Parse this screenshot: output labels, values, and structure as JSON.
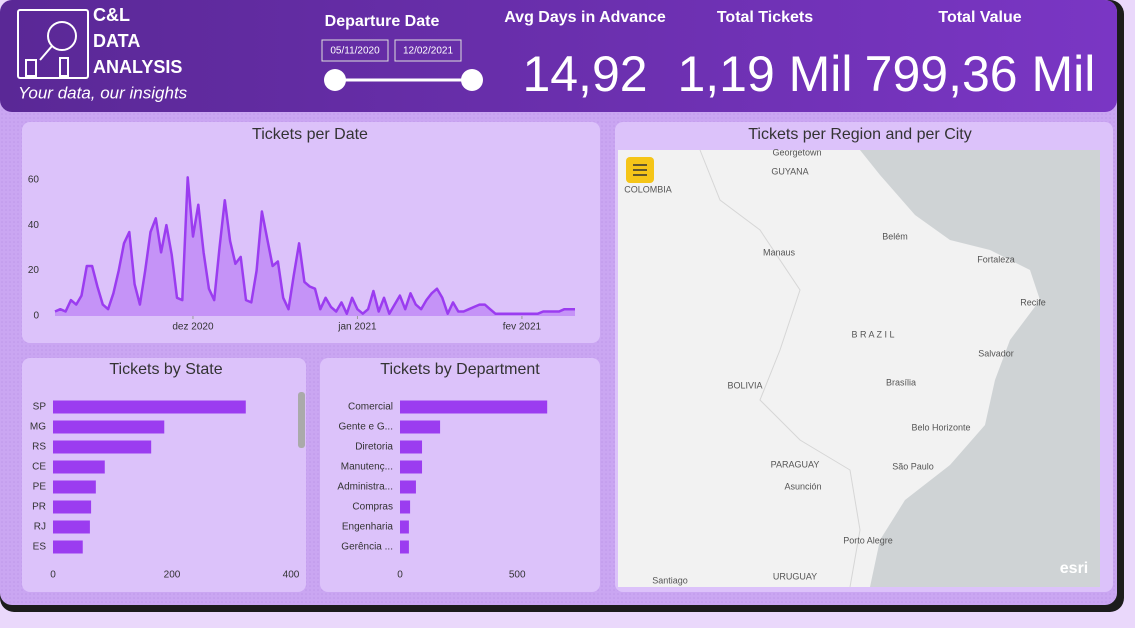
{
  "header": {
    "logo_lines": [
      "C&L",
      "DATA",
      "ANALYSIS"
    ],
    "tagline": "Your data, our insights",
    "slicer_title": "Departure Date",
    "date_from": "05/11/2020",
    "date_to": "12/02/2021",
    "kpis": [
      {
        "label": "Avg Days in Advance",
        "value": "14,92"
      },
      {
        "label": "Total Tickets",
        "value": "1,19 Mil"
      },
      {
        "label": "Total Value",
        "value": "799,36 Mil"
      }
    ]
  },
  "chart_data": [
    {
      "type": "line",
      "title": "Tickets per Date",
      "color": "#9b3cf0",
      "x": [
        0,
        1,
        2,
        3,
        4,
        5,
        6,
        7,
        8,
        9,
        10,
        11,
        12,
        13,
        14,
        15,
        16,
        17,
        18,
        19,
        20,
        21,
        22,
        23,
        24,
        25,
        26,
        27,
        28,
        29,
        30,
        31,
        32,
        33,
        34,
        35,
        36,
        37,
        38,
        39,
        40,
        41,
        42,
        43,
        44,
        45,
        46,
        47,
        48,
        49,
        50,
        51,
        52,
        53,
        54,
        55,
        56,
        57,
        58,
        59,
        60,
        61,
        62,
        63,
        64,
        65,
        66,
        67,
        68,
        69,
        70,
        71,
        72,
        73,
        74,
        75,
        76,
        77,
        78,
        79,
        80,
        81,
        82,
        83,
        84,
        85,
        86,
        87,
        88,
        89,
        90,
        91,
        92,
        93,
        94,
        95,
        96,
        97,
        98
      ],
      "values": [
        2,
        3,
        2,
        7,
        5,
        9,
        22,
        22,
        13,
        5,
        3,
        10,
        20,
        32,
        37,
        14,
        5,
        20,
        37,
        43,
        28,
        40,
        27,
        8,
        7,
        61,
        35,
        49,
        28,
        12,
        7,
        30,
        51,
        33,
        23,
        26,
        7,
        6,
        20,
        46,
        34,
        22,
        24,
        8,
        3,
        18,
        32,
        15,
        13,
        12,
        3,
        8,
        4,
        2,
        6,
        1,
        8,
        3,
        1,
        3,
        11,
        2,
        8,
        1,
        5,
        9,
        3,
        10,
        5,
        3,
        7,
        10,
        12,
        8,
        1,
        6,
        2,
        2,
        3,
        4,
        5,
        5,
        3,
        1,
        1,
        1,
        1,
        1,
        1,
        1,
        1,
        1,
        2,
        2,
        2,
        2,
        3,
        3,
        3
      ],
      "xlim": [
        0,
        98
      ],
      "xticks": [
        {
          "value": 26,
          "label": "dez 2020"
        },
        {
          "value": 57,
          "label": "jan 2021"
        },
        {
          "value": 88,
          "label": "fev 2021"
        }
      ],
      "ylim": [
        0,
        70
      ],
      "yticks": [
        0,
        20,
        40,
        60
      ]
    },
    {
      "type": "bar",
      "orientation": "horizontal",
      "title": "Tickets by State",
      "color": "#9b3cf0",
      "categories": [
        "SP",
        "MG",
        "RS",
        "CE",
        "PE",
        "PR",
        "RJ",
        "ES"
      ],
      "values": [
        324,
        187,
        165,
        87,
        72,
        64,
        62,
        50
      ],
      "xlim": [
        0,
        400
      ],
      "xticks": [
        0,
        200,
        400
      ]
    },
    {
      "type": "bar",
      "orientation": "horizontal",
      "title": "Tickets by Department",
      "color": "#9b3cf0",
      "categories": [
        "Comercial",
        "Gente e G...",
        "Diretoria",
        "Manutenç...",
        "Administra...",
        "Compras",
        "Engenharia",
        "Gerência ..."
      ],
      "values": [
        628,
        171,
        94,
        94,
        68,
        43,
        38,
        38
      ],
      "xlim": [
        0,
        640
      ],
      "xticks": [
        0,
        500
      ]
    }
  ],
  "map": {
    "title": "Tickets per Region and per City",
    "places": [
      "Georgetown",
      "GUYANA",
      "COLOMBIA",
      "Manaus",
      "Belém",
      "Fortaleza",
      "Recife",
      "B R A Z I L",
      "Salvador",
      "BOLIVIA",
      "Brasília",
      "Belo Horizonte",
      "PARAGUAY",
      "São Paulo",
      "Asunción",
      "Porto Alegre",
      "Santiago",
      "URUGUAY",
      "esri"
    ]
  }
}
